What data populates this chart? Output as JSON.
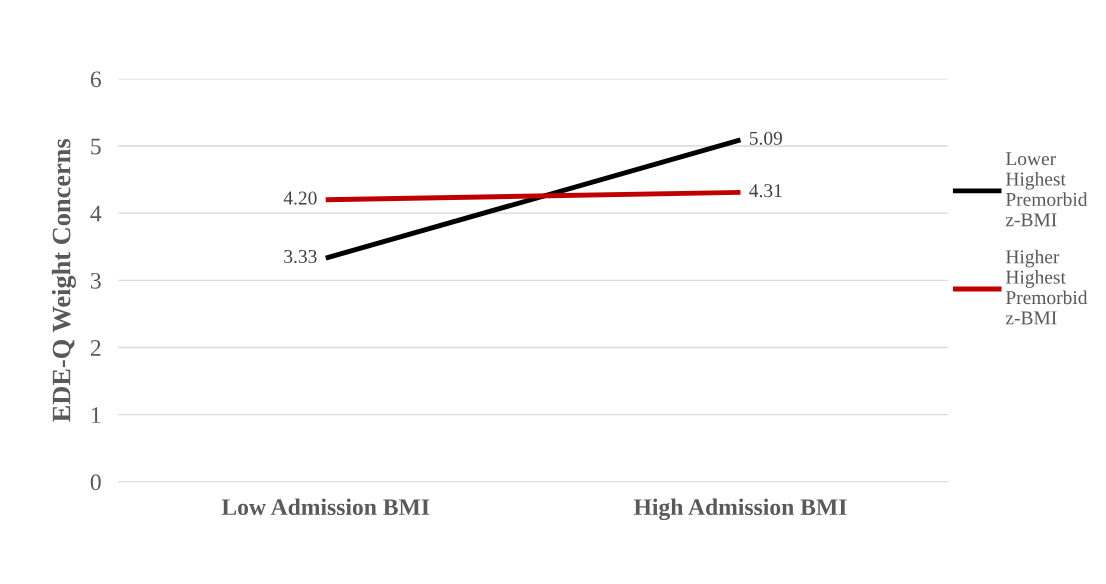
{
  "chart_data": {
    "type": "line",
    "ylabel": "EDE-Q Weight Concerns",
    "categories": [
      "Low Admission BMI",
      "High Admission BMI"
    ],
    "series": [
      {
        "name": "Lower Highest Premorbid z-BMI",
        "color": "#000000",
        "values": [
          3.33,
          5.09
        ],
        "value_labels": [
          "3.33",
          "5.09"
        ]
      },
      {
        "name": "Higher Highest Premorbid z-BMI",
        "color": "#c00000",
        "values": [
          4.2,
          4.31
        ],
        "value_labels": [
          "4.20",
          "4.31"
        ]
      }
    ],
    "ylim": [
      0,
      6
    ],
    "yticks": [
      0,
      1,
      2,
      3,
      4,
      5,
      6
    ],
    "grid": "y",
    "legend": "right"
  }
}
